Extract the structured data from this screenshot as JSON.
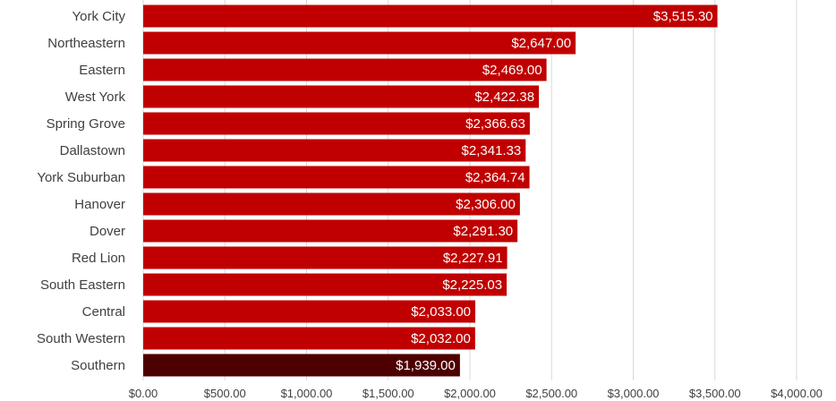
{
  "chart_data": {
    "type": "bar",
    "orientation": "horizontal",
    "categories": [
      "York City",
      "Northeastern",
      "Eastern",
      "West York",
      "Spring Grove",
      "Dallastown",
      "York Suburban",
      "Hanover",
      "Dover",
      "Red Lion",
      "South Eastern",
      "Central",
      "South Western",
      "Southern"
    ],
    "values": [
      3515.3,
      2647.0,
      2469.0,
      2422.38,
      2366.63,
      2341.33,
      2364.74,
      2306.0,
      2291.3,
      2227.91,
      2225.03,
      2033.0,
      2032.0,
      1939.0
    ],
    "data_labels": [
      "$3,515.30",
      "$2,647.00",
      "$2,469.00",
      "$2,422.38",
      "$2,366.63",
      "$2,341.33",
      "$2,364.74",
      "$2,306.00",
      "$2,291.30",
      "$2,227.91",
      "$2,225.03",
      "$2,033.00",
      "$2,032.00",
      "$1,939.00"
    ],
    "xlim": [
      0,
      4000
    ],
    "x_ticks": [
      0,
      500,
      1000,
      1500,
      2000,
      2500,
      3000,
      3500,
      4000
    ],
    "x_tick_labels": [
      "$0.00",
      "$500.00",
      "$1,000.00",
      "$1,500.00",
      "$2,000.00",
      "$2,500.00",
      "$3,000.00",
      "$3,500.00",
      "$4,000.00"
    ],
    "grid": true,
    "colors": {
      "bar": "#c00000",
      "highlight": "#4d0000",
      "grid": "#d9d9d9",
      "label_text": "#404040"
    },
    "highlighted_category": "Southern",
    "title": "",
    "xlabel": "",
    "ylabel": ""
  }
}
